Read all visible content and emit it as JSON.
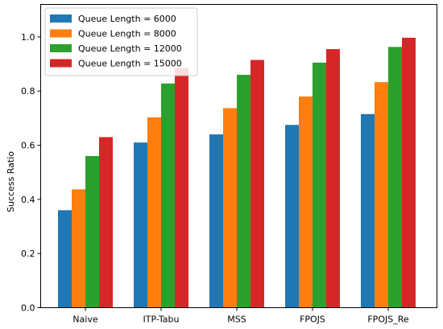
{
  "chart_data": {
    "type": "bar",
    "title": "",
    "xlabel": "",
    "ylabel": "Success Ratio",
    "ylim": [
      0.0,
      1.12
    ],
    "yticks": [
      "0.0",
      "0.2",
      "0.4",
      "0.6",
      "0.8",
      "1.0"
    ],
    "categories": [
      "Naive",
      "ITP-Tabu",
      "MSS",
      "FPOJS",
      "FPOJS_Re"
    ],
    "grid": false,
    "legend_position": "top-left",
    "series": [
      {
        "name": "Queue Length = 6000",
        "color": "#1f77b4",
        "values": [
          0.36,
          0.61,
          0.64,
          0.675,
          0.715
        ]
      },
      {
        "name": "Queue Length = 8000",
        "color": "#ff7f0e",
        "values": [
          0.437,
          0.703,
          0.737,
          0.78,
          0.833
        ]
      },
      {
        "name": "Queue Length = 12000",
        "color": "#2ca02c",
        "values": [
          0.56,
          0.828,
          0.86,
          0.905,
          0.963
        ]
      },
      {
        "name": "Queue Length = 15000",
        "color": "#d62728",
        "values": [
          0.63,
          0.885,
          0.915,
          0.955,
          0.997
        ]
      }
    ]
  }
}
